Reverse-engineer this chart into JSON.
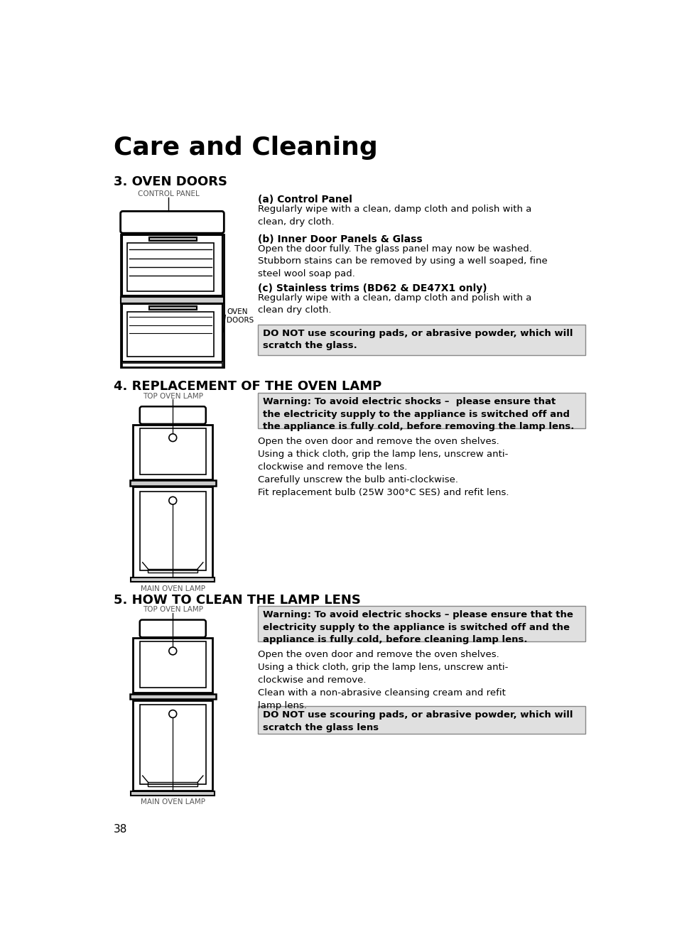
{
  "bg_color": "#ffffff",
  "page_title": "Care and Cleaning",
  "section3_title": "3. OVEN DOORS",
  "section4_title": "4. REPLACEMENT OF THE OVEN LAMP",
  "section5_title": "5. HOW TO CLEAN THE LAMP LENS",
  "page_number": "38",
  "s3_label_control_panel": "CONTROL PANEL",
  "s3_label_oven_doors": "OVEN\nDOORS",
  "s3a_title": "(a) Control Panel",
  "s3a_text": "Regularly wipe with a clean, damp cloth and polish with a\nclean, dry cloth.",
  "s3b_title": "(b) Inner Door Panels & Glass",
  "s3b_text": "Open the door fully. The glass panel may now be washed.\nStubborn stains can be removed by using a well soaped, fine\nsteel wool soap pad.",
  "s3c_title": "(c) Stainless trims (BD62 & DE47X1 only)",
  "s3c_text": "Regularly wipe with a clean, damp cloth and polish with a\nclean dry cloth.",
  "s3_warning": "DO NOT use scouring pads, or abrasive powder, which will\nscratch the glass.",
  "s4_label_top": "TOP OVEN LAMP",
  "s4_label_main": "MAIN OVEN LAMP",
  "s4_warning": "Warning: To avoid electric shocks –  please ensure that\nthe electricity supply to the appliance is switched off and\nthe appliance is fully cold, before removing the lamp lens.",
  "s4_text": "Open the oven door and remove the oven shelves.\nUsing a thick cloth, grip the lamp lens, unscrew anti-\nclockwise and remove the lens.\nCarefully unscrew the bulb anti-clockwise.\nFit replacement bulb (25W 300°C SES) and refit lens.",
  "s5_label_top": "TOP OVEN LAMP",
  "s5_label_main": "MAIN OVEN LAMP",
  "s5_warning": "Warning: To avoid electric shocks – please ensure that the\nelectricity supply to the appliance is switched off and the\nappliance is fully cold, before cleaning lamp lens.",
  "s5_text": "Open the oven door and remove the oven shelves.\nUsing a thick cloth, grip the lamp lens, unscrew anti-\nclockwise and remove.\nClean with a non-abrasive cleansing cream and refit\nlamp lens.",
  "s5_warning2": "DO NOT use scouring pads, or abrasive powder, which will\nscratch the glass lens"
}
